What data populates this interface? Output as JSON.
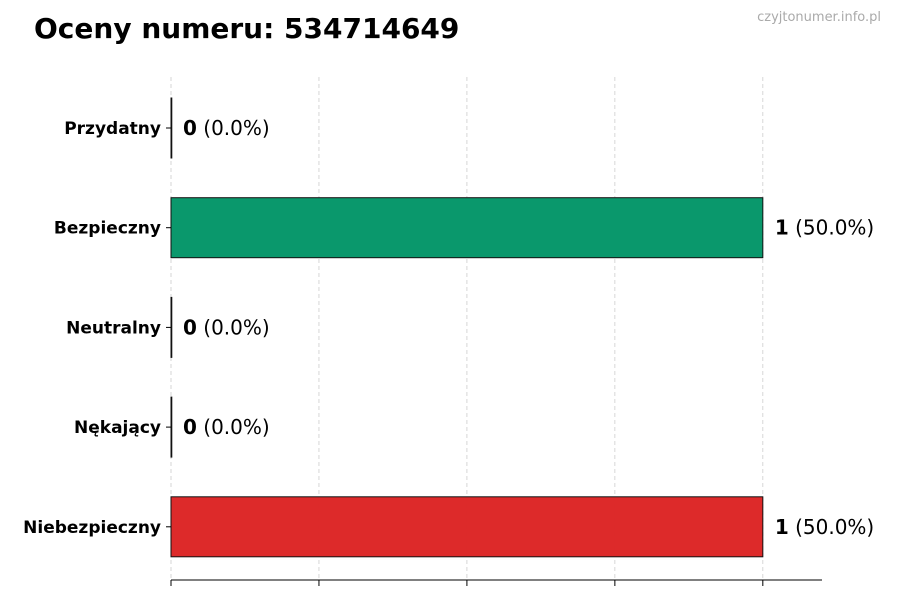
{
  "title": "Oceny numeru: 534714649",
  "watermark": "czyjtonumer.info.pl",
  "chart_data": {
    "type": "bar",
    "orientation": "horizontal",
    "categories": [
      "Przydatny",
      "Bezpieczny",
      "Neutralny",
      "Nękający",
      "Niebezpieczny"
    ],
    "values": [
      0,
      1,
      0,
      0,
      1
    ],
    "percent_labels": [
      "(0.0%)",
      "(50.0%)",
      "(0.0%)",
      "(0.0%)",
      "(50.0%)"
    ],
    "colors": [
      "#059669",
      "#059669",
      "#9ca3af",
      "#dc2626",
      "#dc2626"
    ],
    "xlim": [
      0,
      1.1
    ],
    "xticks": [
      0,
      0.25,
      0.5,
      0.75,
      1
    ],
    "grid": "x-dashed",
    "xlabel": "",
    "ylabel": ""
  }
}
